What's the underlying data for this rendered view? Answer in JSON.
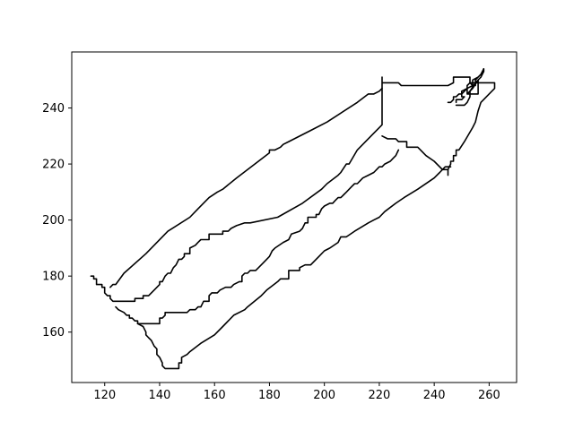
{
  "chart_data": {
    "type": "line",
    "title": "",
    "xlabel": "",
    "ylabel": "",
    "xlim": [
      108,
      270
    ],
    "ylim": [
      142,
      260
    ],
    "grid": false,
    "x_ticks": [
      120,
      140,
      160,
      180,
      200,
      220,
      240,
      260
    ],
    "y_ticks": [
      160,
      180,
      200,
      220,
      240
    ],
    "x_tick_labels": [
      "120",
      "140",
      "160",
      "180",
      "200",
      "220",
      "240",
      "260"
    ],
    "y_tick_labels": [
      "160",
      "180",
      "200",
      "220",
      "240"
    ],
    "color": "#000000",
    "series": [
      {
        "values": [
          [
            115,
            180
          ],
          [
            116,
            180
          ],
          [
            116,
            179
          ],
          [
            117,
            179
          ],
          [
            117,
            177
          ],
          [
            119,
            177
          ],
          [
            119,
            176
          ],
          [
            120,
            176
          ],
          [
            120,
            174
          ],
          [
            121,
            173
          ],
          [
            122,
            173
          ],
          [
            122,
            172
          ],
          [
            123,
            171
          ],
          [
            124,
            171
          ],
          [
            130,
            171
          ],
          [
            131,
            171
          ],
          [
            131,
            172
          ],
          [
            134,
            172
          ],
          [
            134,
            173
          ],
          [
            136,
            173
          ],
          [
            137,
            174
          ],
          [
            138,
            175
          ],
          [
            140,
            177
          ],
          [
            140,
            178
          ],
          [
            141,
            178
          ],
          [
            142,
            180
          ],
          [
            143,
            181
          ],
          [
            144,
            181
          ],
          [
            145,
            183
          ],
          [
            146,
            184
          ],
          [
            147,
            186
          ],
          [
            148,
            186
          ],
          [
            149,
            187
          ],
          [
            149,
            188
          ],
          [
            151,
            188
          ],
          [
            151,
            190
          ],
          [
            153,
            191
          ],
          [
            154,
            192
          ],
          [
            155,
            193
          ],
          [
            158,
            193
          ],
          [
            158,
            195
          ],
          [
            162,
            195
          ],
          [
            163,
            195
          ],
          [
            163,
            196
          ],
          [
            165,
            196
          ],
          [
            166,
            197
          ],
          [
            168,
            198
          ],
          [
            171,
            199
          ],
          [
            173,
            199
          ],
          [
            183,
            201
          ],
          [
            192,
            206
          ],
          [
            199,
            211
          ],
          [
            201,
            213
          ],
          [
            205,
            216
          ],
          [
            206,
            217
          ],
          [
            208,
            220
          ],
          [
            209,
            220
          ],
          [
            212,
            225
          ],
          [
            217,
            230
          ],
          [
            221,
            234
          ],
          [
            221,
            242
          ],
          [
            221,
            251
          ],
          [
            221,
            249
          ],
          [
            227,
            249
          ],
          [
            228,
            248
          ],
          [
            230,
            248
          ],
          [
            245,
            248
          ],
          [
            247,
            249
          ],
          [
            247,
            251
          ],
          [
            253,
            251
          ],
          [
            253,
            249
          ],
          [
            256,
            249
          ],
          [
            257,
            249
          ],
          [
            262,
            249
          ],
          [
            262,
            247
          ],
          [
            261,
            246
          ],
          [
            257,
            242
          ],
          [
            256,
            239
          ],
          [
            255,
            235
          ],
          [
            254,
            233
          ],
          [
            251,
            228
          ],
          [
            249,
            225
          ],
          [
            248,
            225
          ],
          [
            248,
            223
          ],
          [
            247,
            223
          ],
          [
            247,
            221
          ],
          [
            246,
            221
          ],
          [
            246,
            220
          ],
          [
            245,
            218
          ]
        ]
      },
      {
        "values": [
          [
            122,
            176
          ],
          [
            123,
            177
          ],
          [
            124,
            177
          ],
          [
            127,
            181
          ],
          [
            135,
            188
          ],
          [
            143,
            196
          ],
          [
            151,
            201
          ],
          [
            154,
            204
          ],
          [
            158,
            208
          ],
          [
            161,
            210
          ],
          [
            163,
            211
          ],
          [
            168,
            215
          ],
          [
            176,
            221
          ],
          [
            180,
            224
          ],
          [
            180,
            225
          ],
          [
            182,
            225
          ],
          [
            184,
            226
          ],
          [
            185,
            227
          ],
          [
            187,
            228
          ],
          [
            195,
            232
          ],
          [
            201,
            235
          ],
          [
            212,
            242
          ],
          [
            216,
            245
          ],
          [
            218,
            245
          ],
          [
            220,
            246
          ],
          [
            221,
            247
          ]
        ]
      },
      {
        "values": [
          [
            124,
            169
          ],
          [
            125,
            168
          ],
          [
            127,
            167
          ],
          [
            128,
            166
          ],
          [
            129,
            166
          ],
          [
            129,
            165
          ],
          [
            130,
            165
          ],
          [
            131,
            164
          ],
          [
            132,
            164
          ],
          [
            132,
            163
          ],
          [
            133,
            163
          ],
          [
            140,
            163
          ],
          [
            140,
            165
          ],
          [
            141,
            165
          ],
          [
            142,
            166
          ],
          [
            142,
            167
          ],
          [
            150,
            167
          ],
          [
            151,
            168
          ],
          [
            153,
            168
          ],
          [
            154,
            169
          ],
          [
            155,
            169
          ],
          [
            156,
            171
          ],
          [
            158,
            171
          ],
          [
            158,
            173
          ],
          [
            159,
            174
          ],
          [
            161,
            174
          ],
          [
            162,
            175
          ],
          [
            164,
            176
          ],
          [
            166,
            176
          ],
          [
            167,
            177
          ],
          [
            169,
            178
          ],
          [
            170,
            178
          ],
          [
            170,
            180
          ],
          [
            171,
            181
          ],
          [
            172,
            181
          ],
          [
            173,
            182
          ],
          [
            175,
            182
          ],
          [
            176,
            183
          ],
          [
            177,
            184
          ],
          [
            179,
            186
          ],
          [
            180,
            187
          ],
          [
            181,
            189
          ],
          [
            182,
            190
          ],
          [
            185,
            192
          ],
          [
            187,
            193
          ],
          [
            188,
            195
          ],
          [
            191,
            196
          ],
          [
            192,
            197
          ],
          [
            193,
            199
          ],
          [
            194,
            199
          ],
          [
            194,
            201
          ],
          [
            197,
            201
          ],
          [
            197,
            202
          ],
          [
            198,
            202
          ],
          [
            199,
            204
          ],
          [
            200,
            205
          ],
          [
            202,
            206
          ],
          [
            203,
            206
          ],
          [
            204,
            207
          ],
          [
            205,
            208
          ],
          [
            206,
            208
          ],
          [
            207,
            209
          ],
          [
            208,
            210
          ],
          [
            210,
            212
          ],
          [
            211,
            213
          ],
          [
            212,
            213
          ],
          [
            213,
            214
          ],
          [
            214,
            215
          ],
          [
            216,
            216
          ],
          [
            218,
            217
          ],
          [
            219,
            218
          ],
          [
            220,
            219
          ],
          [
            221,
            219
          ],
          [
            222,
            220
          ],
          [
            224,
            221
          ],
          [
            225,
            222
          ],
          [
            226,
            223
          ],
          [
            227,
            225
          ]
        ]
      },
      {
        "values": [
          [
            132,
            163
          ],
          [
            134,
            162
          ],
          [
            135,
            160
          ],
          [
            135,
            159
          ],
          [
            136,
            158
          ],
          [
            137,
            157
          ],
          [
            138,
            155
          ],
          [
            139,
            154
          ],
          [
            139,
            152
          ],
          [
            140,
            151
          ],
          [
            141,
            149
          ],
          [
            141,
            148
          ],
          [
            142,
            147
          ],
          [
            147,
            147
          ],
          [
            147,
            149
          ],
          [
            148,
            149
          ],
          [
            148,
            151
          ],
          [
            150,
            152
          ],
          [
            151,
            153
          ],
          [
            155,
            156
          ],
          [
            160,
            159
          ],
          [
            163,
            162
          ],
          [
            167,
            166
          ],
          [
            171,
            168
          ],
          [
            172,
            169
          ],
          [
            177,
            173
          ],
          [
            179,
            175
          ],
          [
            183,
            178
          ],
          [
            184,
            179
          ],
          [
            187,
            179
          ],
          [
            187,
            182
          ],
          [
            191,
            182
          ],
          [
            191,
            183
          ],
          [
            193,
            184
          ],
          [
            195,
            184
          ],
          [
            198,
            187
          ],
          [
            200,
            189
          ],
          [
            202,
            190
          ],
          [
            205,
            192
          ],
          [
            206,
            194
          ],
          [
            208,
            194
          ],
          [
            211,
            196
          ],
          [
            216,
            199
          ],
          [
            218,
            200
          ],
          [
            220,
            201
          ],
          [
            222,
            203
          ],
          [
            226,
            206
          ],
          [
            229,
            208
          ],
          [
            234,
            211
          ],
          [
            240,
            215
          ],
          [
            242,
            217
          ],
          [
            243,
            218
          ],
          [
            244,
            219
          ],
          [
            246,
            219
          ]
        ]
      },
      {
        "values": [
          [
            221,
            230
          ],
          [
            223,
            229
          ],
          [
            226,
            229
          ],
          [
            227,
            228
          ],
          [
            230,
            228
          ],
          [
            230,
            226
          ],
          [
            234,
            226
          ],
          [
            237,
            223
          ],
          [
            240,
            221
          ],
          [
            243,
            218
          ],
          [
            244,
            218
          ],
          [
            245,
            218
          ],
          [
            245,
            217
          ],
          [
            245,
            216
          ]
        ]
      },
      {
        "values": [
          [
            248,
            242
          ],
          [
            248,
            243
          ],
          [
            250,
            243
          ],
          [
            251,
            244
          ],
          [
            250,
            244
          ],
          [
            250,
            246
          ],
          [
            252,
            247
          ],
          [
            252,
            245
          ],
          [
            256,
            245
          ],
          [
            256,
            250
          ],
          [
            254,
            247
          ],
          [
            252,
            245
          ],
          [
            252,
            248
          ],
          [
            253,
            249
          ],
          [
            254,
            248
          ],
          [
            255,
            248
          ],
          [
            255,
            249
          ],
          [
            257,
            251
          ],
          [
            258,
            253
          ],
          [
            258,
            254
          ]
        ]
      },
      {
        "values": [
          [
            248,
            241
          ],
          [
            251,
            241
          ],
          [
            252,
            242
          ],
          [
            253,
            244
          ],
          [
            253,
            246
          ],
          [
            255,
            249
          ],
          [
            255,
            250
          ],
          [
            256,
            251
          ],
          [
            258,
            253
          ],
          [
            258,
            254
          ],
          [
            257,
            252
          ],
          [
            256,
            251
          ],
          [
            254,
            250
          ],
          [
            254,
            248
          ],
          [
            252,
            247
          ],
          [
            250,
            245
          ],
          [
            249,
            245
          ],
          [
            248,
            244
          ],
          [
            247,
            244
          ],
          [
            247,
            243
          ],
          [
            246,
            242
          ],
          [
            245,
            242
          ]
        ]
      }
    ]
  }
}
